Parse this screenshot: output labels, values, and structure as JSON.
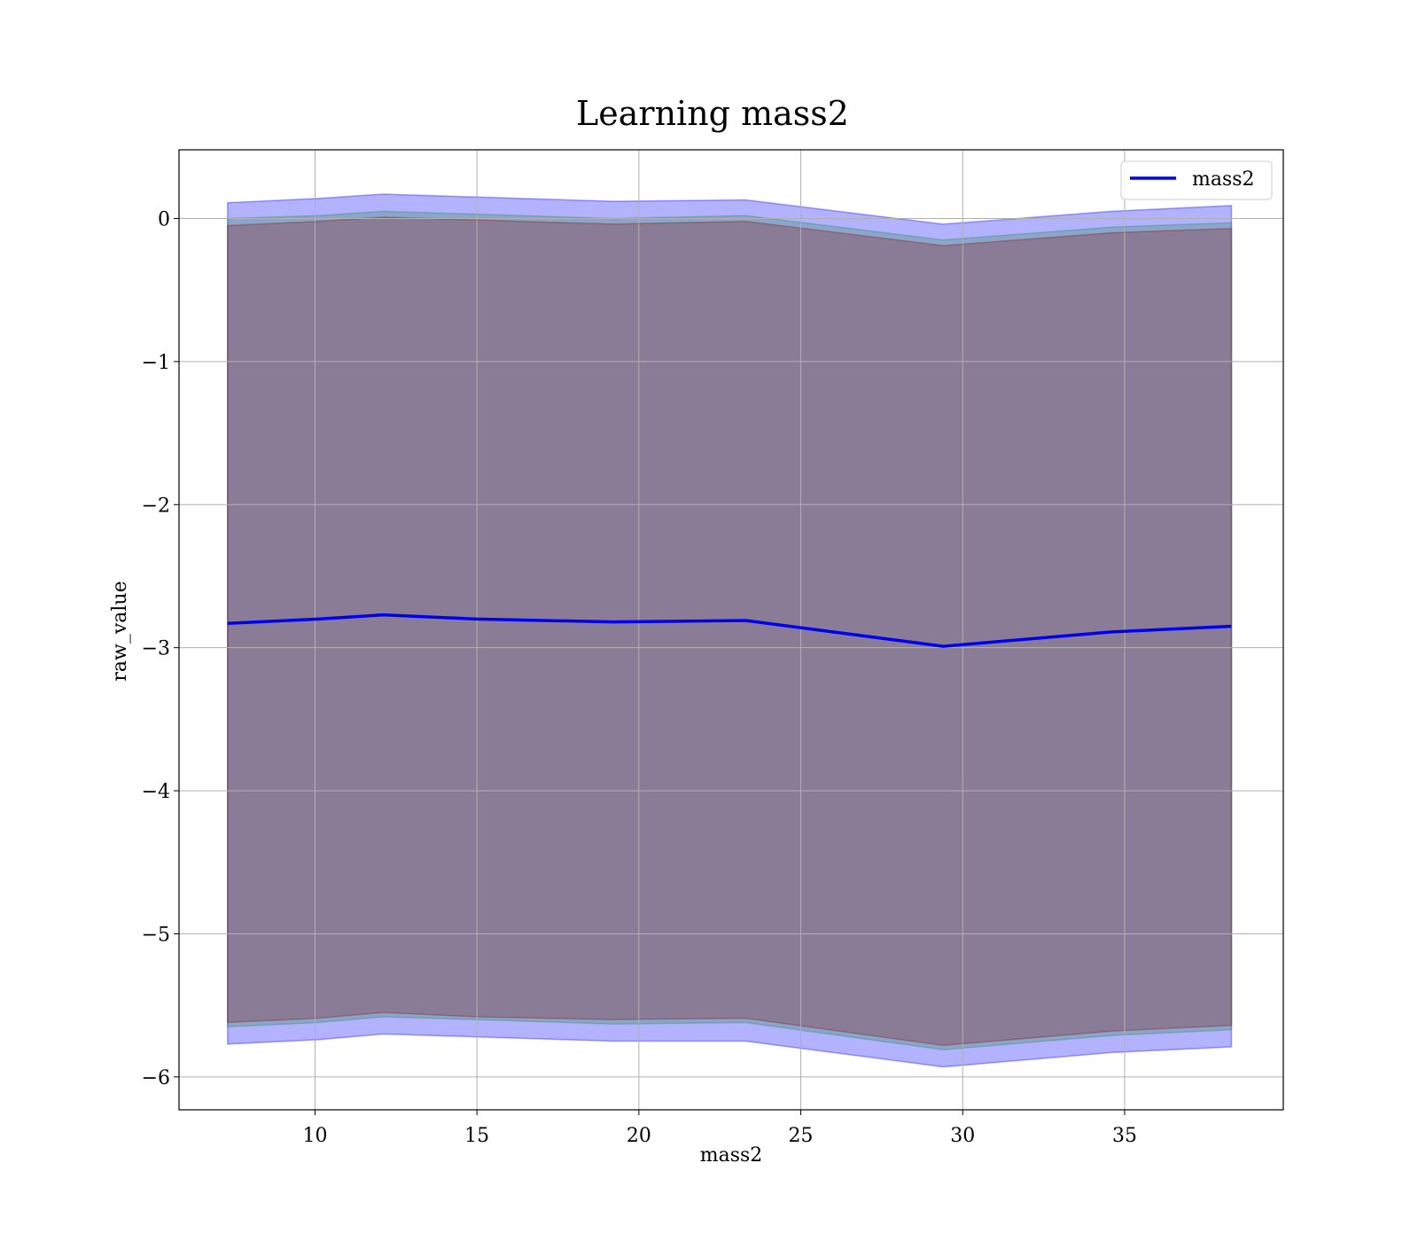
{
  "chart_data": {
    "type": "area",
    "title": "Learning mass2",
    "xlabel": "mass2",
    "ylabel": "raw_value",
    "xlim": [
      5.8,
      39.9
    ],
    "ylim": [
      -6.23,
      0.48
    ],
    "xticks": [
      10,
      15,
      20,
      25,
      30,
      35
    ],
    "xtick_labels": [
      "10",
      "15",
      "20",
      "25",
      "30",
      "35"
    ],
    "yticks": [
      0,
      -1,
      -2,
      -3,
      -4,
      -5,
      -6
    ],
    "ytick_labels": [
      "0",
      "−1",
      "−2",
      "−3",
      "−4",
      "−5",
      "−6"
    ],
    "grid": true,
    "legend_position": "top-right",
    "x": [
      7.3,
      10.1,
      12.1,
      15.0,
      19.2,
      23.3,
      29.4,
      34.6,
      38.3
    ],
    "series": [
      {
        "name": "mass2",
        "color": "#0000ee",
        "values": [
          -2.83,
          -2.8,
          -2.77,
          -2.8,
          -2.82,
          -2.81,
          -2.99,
          -2.89,
          -2.85
        ]
      }
    ],
    "bands": [
      {
        "color": "#0000ff",
        "upper": [
          0.11,
          0.14,
          0.17,
          0.15,
          0.12,
          0.13,
          -0.04,
          0.05,
          0.09
        ],
        "lower": [
          -5.77,
          -5.74,
          -5.7,
          -5.72,
          -5.75,
          -5.75,
          -5.93,
          -5.83,
          -5.79
        ]
      },
      {
        "color": "#2e8b57",
        "upper": [
          0.0,
          0.02,
          0.05,
          0.03,
          0.0,
          0.02,
          -0.15,
          -0.06,
          -0.03
        ],
        "lower": [
          -5.65,
          -5.62,
          -5.58,
          -5.6,
          -5.63,
          -5.62,
          -5.81,
          -5.71,
          -5.67
        ]
      },
      {
        "color": "#8b1a1a",
        "upper": [
          -0.05,
          -0.02,
          0.01,
          -0.01,
          -0.04,
          -0.02,
          -0.19,
          -0.1,
          -0.07
        ],
        "lower": [
          -5.62,
          -5.59,
          -5.55,
          -5.58,
          -5.6,
          -5.59,
          -5.78,
          -5.68,
          -5.64
        ]
      }
    ]
  }
}
